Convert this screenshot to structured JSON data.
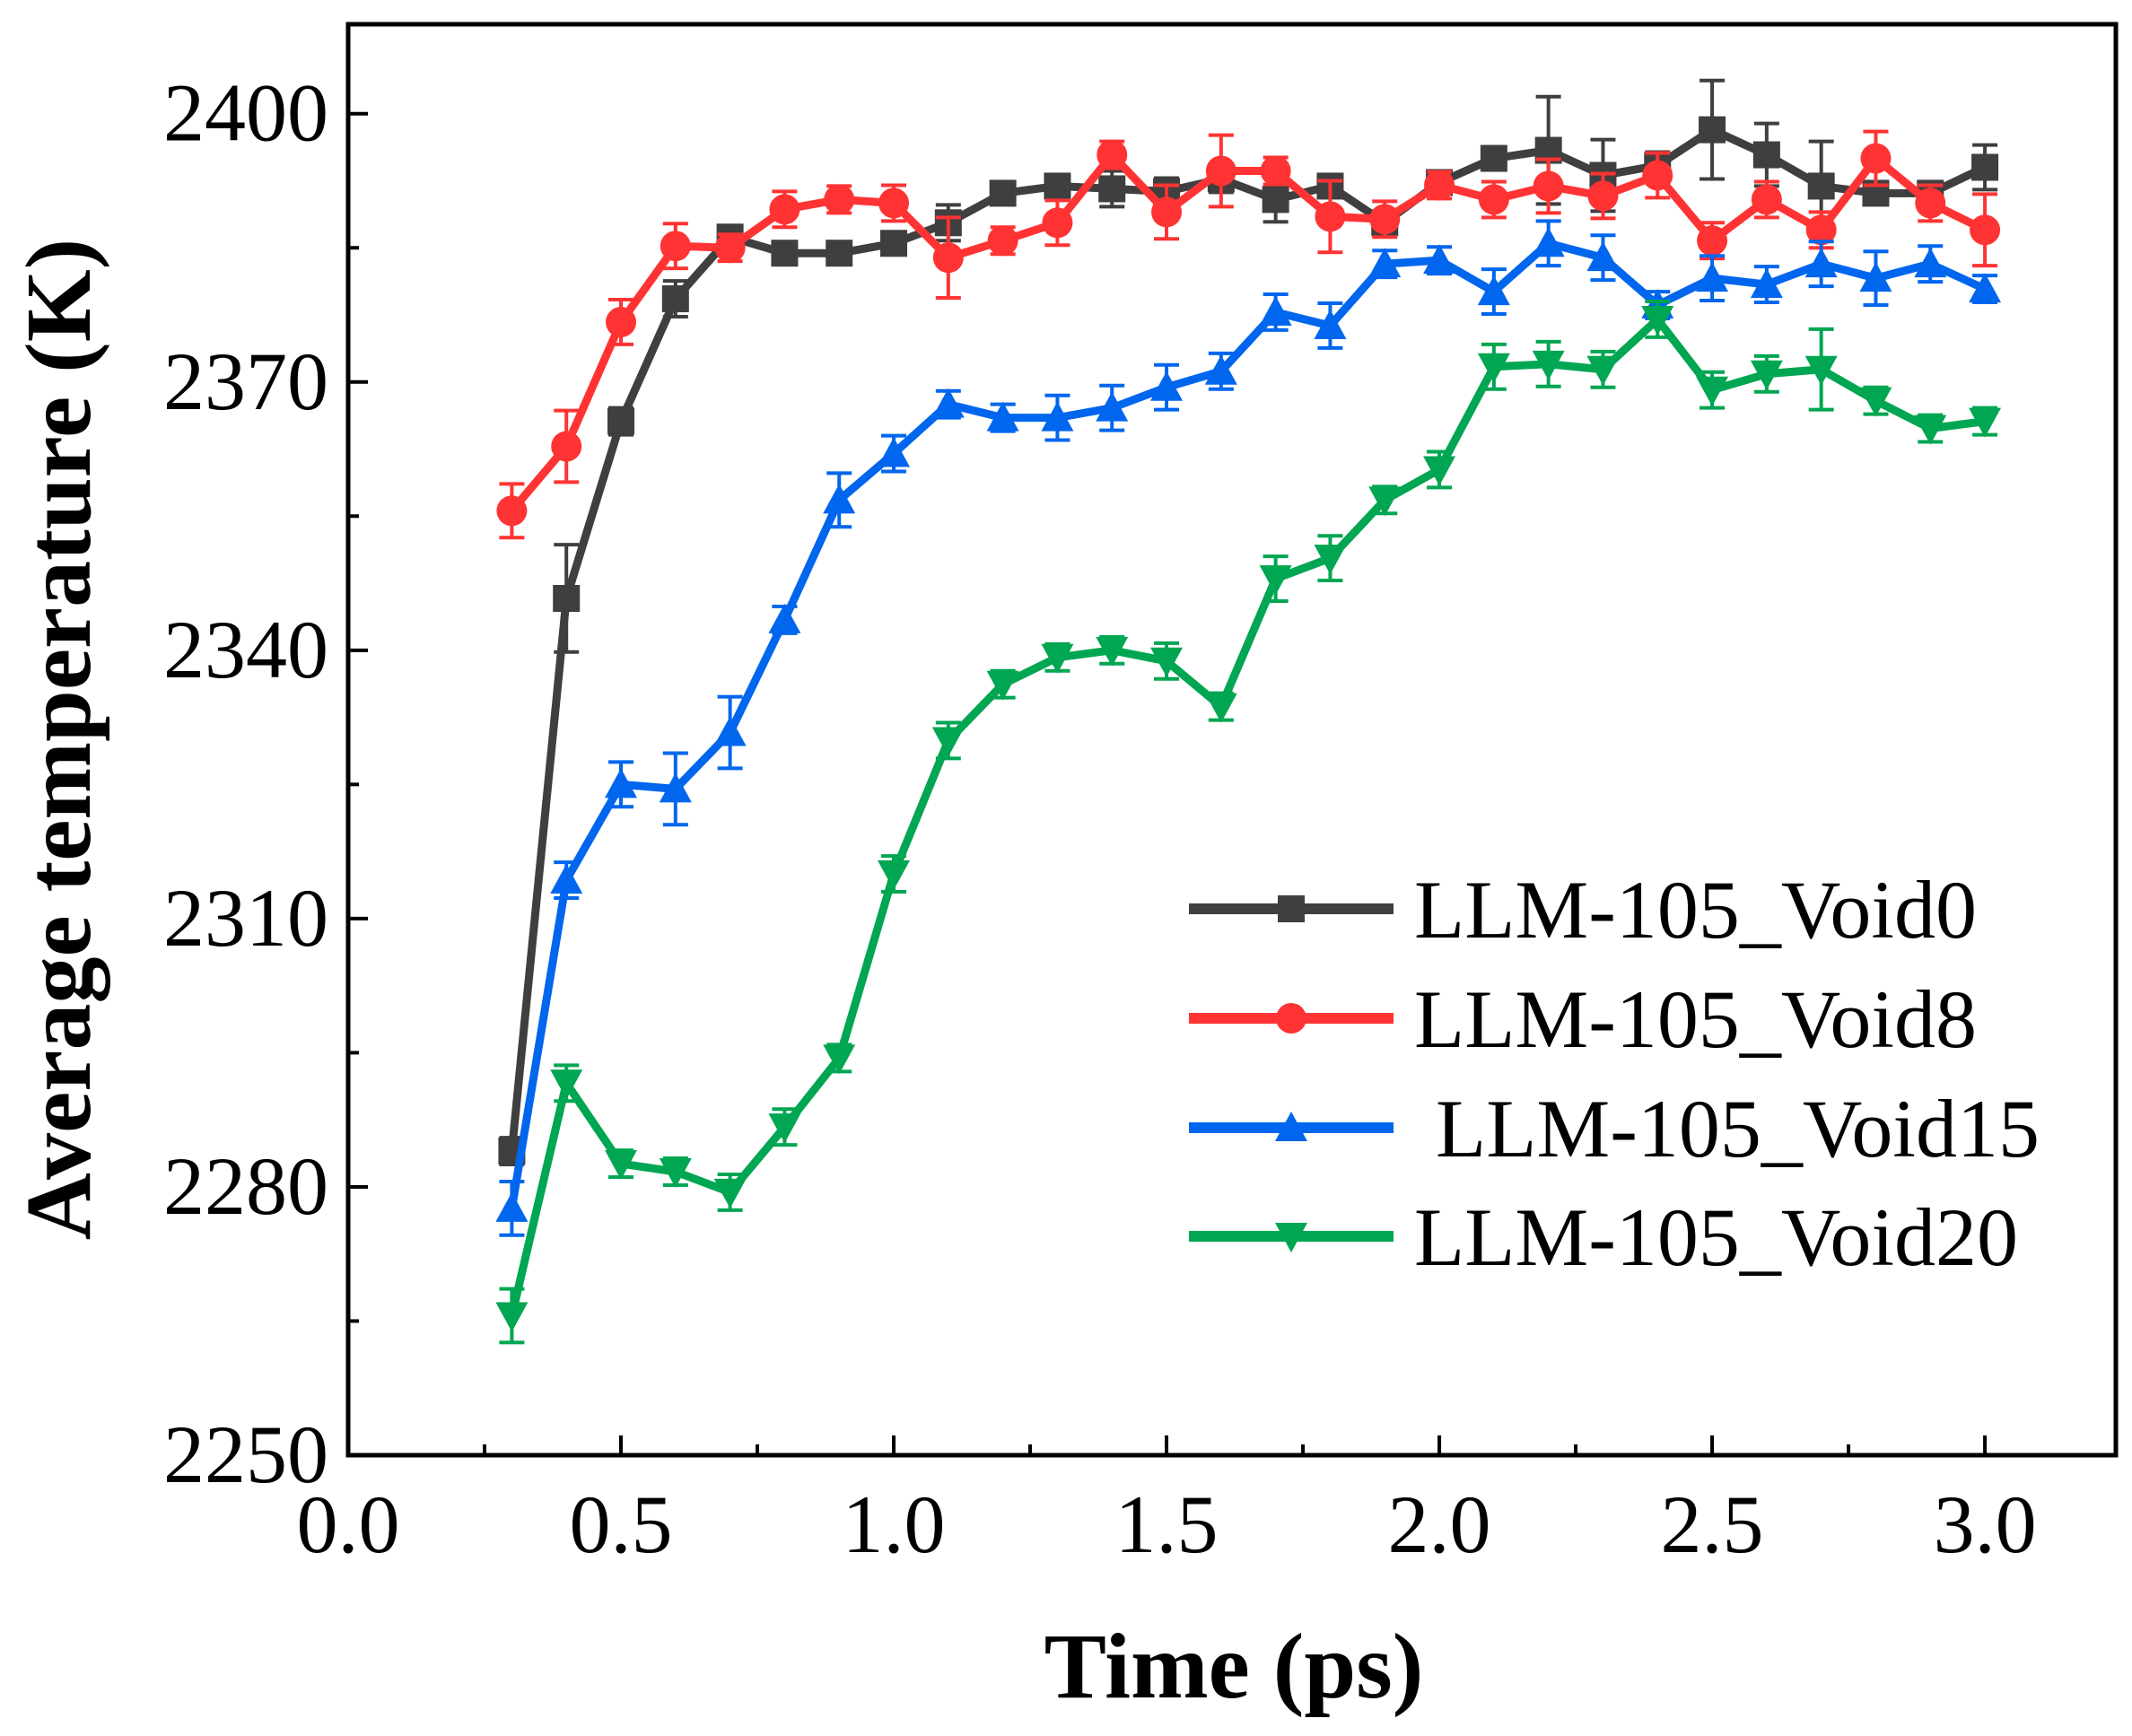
{
  "chart_data": {
    "type": "line",
    "title": "",
    "xlabel": "Time (ps)",
    "ylabel": "Average temperature (K)",
    "xlim": [
      0,
      3.24
    ],
    "ylim": [
      2250,
      2410
    ],
    "xticks": [
      0.0,
      0.5,
      1.0,
      1.5,
      2.0,
      2.5,
      3.0
    ],
    "xtick_labels": [
      "0.0",
      "0.5",
      "1.0",
      "1.5",
      "2.0",
      "2.5",
      "3.0"
    ],
    "yticks": [
      2250,
      2280,
      2310,
      2340,
      2370,
      2400
    ],
    "ytick_labels": [
      "2250",
      "2280",
      "2310",
      "2340",
      "2370",
      "2400"
    ],
    "grid": false,
    "legend_position": "bottom-right",
    "x": [
      0.3,
      0.4,
      0.5,
      0.6,
      0.7,
      0.8,
      0.9,
      1.0,
      1.1,
      1.2,
      1.3,
      1.4,
      1.5,
      1.6,
      1.7,
      1.8,
      1.9,
      2.0,
      2.1,
      2.2,
      2.3,
      2.4,
      2.5,
      2.6,
      2.7,
      2.8,
      2.9,
      3.0
    ],
    "series": [
      {
        "name": "LLM-105_Void0",
        "color": "#3f3f3f",
        "marker": "square",
        "values": [
          2284,
          2345.8,
          2365.6,
          2379.3,
          2386.2,
          2384.4,
          2384.4,
          2385.5,
          2387.8,
          2391.1,
          2391.9,
          2391.6,
          2391.3,
          2392.7,
          2390.4,
          2391.9,
          2387.8,
          2392.3,
          2395,
          2395.9,
          2393.1,
          2394.2,
          2398.2,
          2395.4,
          2391.9,
          2391.1,
          2391.1,
          2394
        ],
        "errors": [
          1.5,
          6,
          1.5,
          2,
          1,
          1,
          1,
          1,
          2,
          1,
          1,
          2,
          1.5,
          1.5,
          2.5,
          1,
          1,
          1,
          1,
          6,
          4,
          1.5,
          5.5,
          3.5,
          5,
          1,
          1,
          2.5
        ]
      },
      {
        "name": "LLM-105_Void8",
        "color": "#ff3333",
        "marker": "circle",
        "values": [
          2355.6,
          2362.8,
          2376.7,
          2385.2,
          2385,
          2389.3,
          2390.4,
          2390,
          2383.9,
          2385.8,
          2387.8,
          2395.4,
          2389,
          2393.6,
          2393.6,
          2388.5,
          2388.2,
          2392,
          2390.4,
          2391.9,
          2390.8,
          2393.1,
          2385.8,
          2390.4,
          2387,
          2395,
          2390,
          2387
        ],
        "errors": [
          3,
          4,
          2.5,
          2.5,
          1.5,
          2,
          1.5,
          2,
          4.5,
          1.5,
          2.5,
          1.5,
          3,
          4,
          1.5,
          4,
          2,
          1.5,
          2,
          3,
          2.5,
          2.5,
          2,
          2,
          2,
          3,
          2,
          4
        ]
      },
      {
        "name": "LLM-105_Void15",
        "color": "#0066ee",
        "marker": "triangle-up",
        "values": [
          2277.6,
          2314.3,
          2325,
          2324.5,
          2330.8,
          2343.4,
          2356.8,
          2362,
          2367.5,
          2366,
          2366,
          2367.1,
          2369.4,
          2371.2,
          2377.8,
          2376.3,
          2383.2,
          2383.6,
          2380.1,
          2385.5,
          2383.9,
          2378.6,
          2381.6,
          2380.9,
          2383.2,
          2381.6,
          2383.2,
          2380.4
        ],
        "errors": [
          3,
          2,
          2.5,
          4,
          4,
          1.5,
          3,
          2,
          1.5,
          1.5,
          2.5,
          2.5,
          2.5,
          2,
          2,
          2.5,
          1.5,
          1.5,
          2.5,
          2.5,
          2.5,
          1.5,
          2.5,
          2,
          2.5,
          3,
          2,
          1.5
        ]
      },
      {
        "name": "LLM-105_Void20",
        "color": "#00a651",
        "marker": "triangle-down",
        "values": [
          2265.6,
          2291.6,
          2282.6,
          2281.7,
          2279.4,
          2286.7,
          2294.4,
          2315,
          2329.9,
          2336.2,
          2339.2,
          2340,
          2338.8,
          2333.7,
          2348,
          2350.3,
          2356.8,
          2360.2,
          2371.7,
          2372,
          2371.4,
          2377,
          2369.1,
          2370.9,
          2371.4,
          2367.9,
          2364.8,
          2365.6
        ],
        "errors": [
          3,
          2,
          1.5,
          1.5,
          2,
          2,
          1.5,
          2,
          2,
          1.5,
          1.5,
          1.5,
          2,
          1.5,
          2.5,
          2.5,
          1.5,
          2,
          2.5,
          2.5,
          2,
          2,
          2,
          2,
          4.5,
          1.5,
          1.5,
          1.5
        ]
      }
    ]
  }
}
